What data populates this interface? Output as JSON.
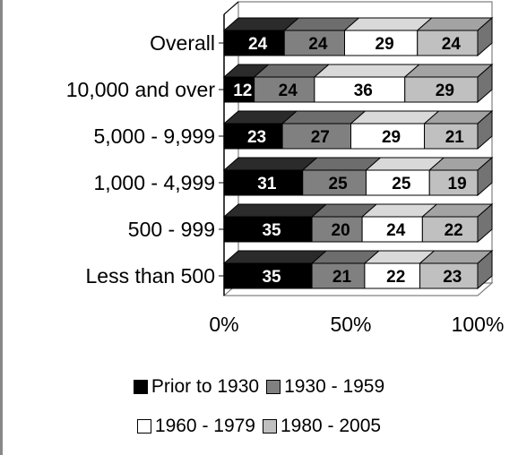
{
  "chart_data": {
    "type": "bar",
    "orientation": "horizontal",
    "stacked": true,
    "percent_stacked": true,
    "three_d": true,
    "categories": [
      "Overall",
      "10,000 and over",
      "5,000 - 9,999",
      "1,000 - 4,999",
      "500 - 999",
      "Less than 500"
    ],
    "series": [
      {
        "name": "Prior to 1930",
        "color": "#000000",
        "label_color": "#ffffff",
        "values": [
          24,
          12,
          23,
          31,
          35,
          35
        ]
      },
      {
        "name": "1930 - 1959",
        "color": "#808080",
        "label_color": "#000000",
        "values": [
          24,
          24,
          27,
          25,
          20,
          21
        ]
      },
      {
        "name": "1960 - 1979",
        "color": "#ffffff",
        "label_color": "#000000",
        "values": [
          29,
          36,
          29,
          25,
          24,
          22
        ]
      },
      {
        "name": "1980 - 2005",
        "color": "#c0c0c0",
        "label_color": "#000000",
        "values": [
          24,
          29,
          21,
          19,
          22,
          23
        ]
      }
    ],
    "x_ticks": [
      "0%",
      "50%",
      "100%"
    ],
    "xlim": [
      0,
      100
    ],
    "grid": false,
    "legend_position": "bottom"
  }
}
